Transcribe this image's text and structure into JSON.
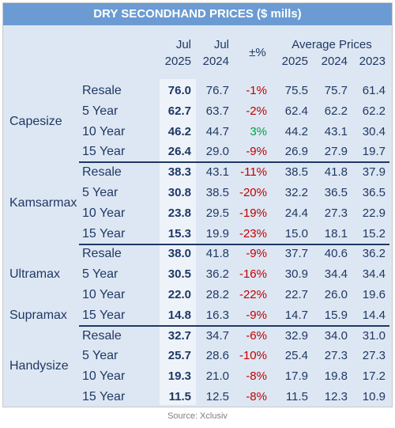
{
  "title": "DRY SECONDHAND PRICES ($ mills)",
  "header": {
    "jul_2025": [
      "Jul",
      "2025"
    ],
    "jul_2024": [
      "Jul",
      "2024"
    ],
    "change": "±%",
    "average": "Average Prices",
    "years": [
      "2025",
      "2024",
      "2023"
    ]
  },
  "groups": [
    {
      "labels": [
        "Capesize"
      ],
      "rows": [
        [
          "Resale",
          "76.0",
          "76.7",
          "-1%",
          "75.5",
          "75.7",
          "61.4"
        ],
        [
          "5 Year",
          "62.7",
          "63.7",
          "-2%",
          "62.4",
          "62.2",
          "62.2"
        ],
        [
          "10 Year",
          "46.2",
          "44.7",
          "3%",
          "44.2",
          "43.1",
          "30.4"
        ],
        [
          "15 Year",
          "26.4",
          "29.0",
          "-9%",
          "26.9",
          "27.9",
          "19.7"
        ]
      ]
    },
    {
      "labels": [
        "Kamsarmax"
      ],
      "rows": [
        [
          "Resale",
          "38.3",
          "43.1",
          "-11%",
          "38.5",
          "41.8",
          "37.9"
        ],
        [
          "5 Year",
          "30.8",
          "38.5",
          "-20%",
          "32.2",
          "36.5",
          "36.5"
        ],
        [
          "10 Year",
          "23.8",
          "29.5",
          "-19%",
          "24.4",
          "27.3",
          "22.9"
        ],
        [
          "15 Year",
          "15.3",
          "19.9",
          "-23%",
          "15.0",
          "18.1",
          "15.2"
        ]
      ]
    },
    {
      "labels": [
        "Ultramax",
        "Supramax"
      ],
      "rows": [
        [
          "Resale",
          "38.0",
          "41.8",
          "-9%",
          "37.7",
          "40.6",
          "36.2"
        ],
        [
          "5 Year",
          "30.5",
          "36.2",
          "-16%",
          "30.9",
          "34.4",
          "34.4"
        ],
        [
          "10 Year",
          "22.0",
          "28.2",
          "-22%",
          "22.7",
          "26.0",
          "19.6"
        ],
        [
          "15 Year",
          "14.8",
          "16.3",
          "-9%",
          "14.7",
          "15.9",
          "14.4"
        ]
      ]
    },
    {
      "labels": [
        "Handysize"
      ],
      "rows": [
        [
          "Resale",
          "32.7",
          "34.7",
          "-6%",
          "32.9",
          "34.0",
          "31.0"
        ],
        [
          "5 Year",
          "25.7",
          "28.6",
          "-10%",
          "25.4",
          "27.3",
          "27.3"
        ],
        [
          "10 Year",
          "19.3",
          "21.0",
          "-8%",
          "17.9",
          "19.8",
          "17.2"
        ],
        [
          "15 Year",
          "11.5",
          "12.5",
          "-8%",
          "11.5",
          "12.3",
          "10.9"
        ]
      ]
    }
  ],
  "source": "Source: Xclusiv"
}
